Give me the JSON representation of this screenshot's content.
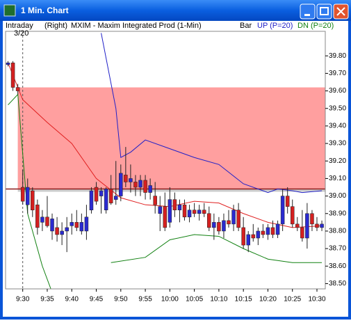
{
  "window": {
    "title": "1 Min. Chart"
  },
  "header": {
    "mode": "Intraday",
    "side": "(Right)",
    "symbol": "MXIM - Maxim Integrated Prod (1-Min)",
    "style": "Bar"
  },
  "chart_data": {
    "type": "candlestick",
    "xlim": [
      566.5,
      631.7
    ],
    "ylim": [
      38.47,
      39.94
    ],
    "xticks": [
      {
        "value": 570,
        "label": "9:30"
      },
      {
        "value": 575,
        "label": "9:35"
      },
      {
        "value": 580,
        "label": "9:40"
      },
      {
        "value": 585,
        "label": "9:45"
      },
      {
        "value": 590,
        "label": "9:50"
      },
      {
        "value": 595,
        "label": "9:55"
      },
      {
        "value": 600,
        "label": "10:00"
      },
      {
        "value": 605,
        "label": "10:05"
      },
      {
        "value": 610,
        "label": "10:10"
      },
      {
        "value": 615,
        "label": "10:15"
      },
      {
        "value": 620,
        "label": "10:20"
      },
      {
        "value": 625,
        "label": "10:25"
      },
      {
        "value": 630,
        "label": "10:30"
      }
    ],
    "yticks": [
      {
        "value": 38.5,
        "label": "38.50"
      },
      {
        "value": 38.6,
        "label": "38.60"
      },
      {
        "value": 38.7,
        "label": "38.70"
      },
      {
        "value": 38.8,
        "label": "38.80"
      },
      {
        "value": 38.9,
        "label": "38.90"
      },
      {
        "value": 39.0,
        "label": "39.00"
      },
      {
        "value": 39.1,
        "label": "39.10"
      },
      {
        "value": 39.2,
        "label": "39.20"
      },
      {
        "value": 39.3,
        "label": "39.30"
      },
      {
        "value": 39.4,
        "label": "39.40"
      },
      {
        "value": 39.5,
        "label": "39.50"
      },
      {
        "value": 39.6,
        "label": "39.60"
      },
      {
        "value": 39.7,
        "label": "39.70"
      },
      {
        "value": 39.8,
        "label": "39.80"
      }
    ],
    "up_color": "#2a2ad0",
    "down_color": "#d42020",
    "x": [
      567,
      568,
      569,
      570,
      571,
      572,
      573,
      574,
      575,
      576,
      577,
      578,
      579,
      580,
      581,
      582,
      583,
      584,
      585,
      586,
      587,
      588,
      589,
      590,
      591,
      592,
      593,
      594,
      595,
      596,
      597,
      598,
      599,
      600,
      601,
      602,
      603,
      604,
      605,
      606,
      607,
      608,
      609,
      610,
      611,
      612,
      613,
      614,
      615,
      616,
      617,
      618,
      619,
      620,
      621,
      622,
      623,
      624,
      625,
      626,
      627,
      628,
      629,
      630,
      631
    ],
    "open": [
      39.75,
      39.76,
      39.62,
      39.05,
      38.95,
      39.03,
      38.95,
      38.85,
      38.88,
      38.8,
      38.82,
      38.78,
      38.8,
      38.83,
      38.85,
      38.8,
      38.8,
      38.92,
      39.05,
      39.0,
      38.92,
      39.04,
      38.98,
      39.0,
      39.12,
      39.08,
      39.08,
      39.05,
      39.09,
      39.02,
      39.0,
      38.9,
      38.94,
      38.85,
      38.98,
      38.92,
      38.95,
      38.88,
      38.92,
      38.9,
      38.92,
      38.9,
      38.82,
      38.85,
      38.8,
      38.86,
      38.84,
      38.92,
      38.82,
      38.72,
      38.78,
      38.76,
      38.8,
      38.78,
      38.82,
      38.78,
      38.84,
      39.0,
      38.94,
      38.84,
      38.82,
      38.76,
      38.9,
      38.84,
      38.82
    ],
    "high": [
      39.77,
      39.77,
      39.64,
      39.15,
      39.1,
      39.05,
      38.98,
      38.92,
      39.0,
      38.9,
      38.88,
      38.85,
      38.88,
      38.9,
      38.92,
      38.9,
      38.95,
      39.05,
      39.08,
      39.05,
      39.05,
      39.12,
      39.2,
      39.18,
      39.28,
      39.18,
      39.12,
      39.12,
      39.12,
      39.1,
      39.08,
      39.0,
      39.02,
      39.05,
      39.02,
      38.98,
      38.98,
      38.95,
      38.96,
      38.95,
      38.96,
      38.94,
      38.9,
      38.88,
      38.9,
      38.92,
      38.95,
      38.96,
      38.88,
      38.8,
      38.84,
      38.82,
      38.84,
      38.84,
      38.86,
      38.86,
      39.04,
      39.05,
      38.98,
      38.88,
      38.92,
      38.96,
      38.92,
      38.88,
      38.86
    ],
    "low": [
      39.74,
      39.6,
      39.58,
      38.95,
      38.9,
      38.88,
      38.78,
      38.8,
      38.82,
      38.75,
      38.74,
      38.72,
      38.68,
      38.78,
      38.8,
      38.78,
      38.75,
      38.9,
      38.95,
      38.9,
      38.9,
      38.95,
      38.95,
      38.97,
      39.05,
      39.02,
      39.0,
      39.0,
      38.98,
      38.98,
      38.9,
      38.8,
      38.8,
      38.82,
      38.88,
      38.85,
      38.86,
      38.85,
      38.88,
      38.86,
      38.88,
      38.8,
      38.75,
      38.78,
      38.76,
      38.82,
      38.8,
      38.8,
      38.7,
      38.68,
      38.74,
      38.72,
      38.76,
      38.75,
      38.76,
      38.76,
      38.8,
      38.9,
      38.82,
      38.8,
      38.74,
      38.7,
      38.8,
      38.8,
      38.8
    ],
    "close": [
      39.76,
      39.62,
      39.6,
      38.97,
      39.05,
      38.92,
      38.82,
      38.88,
      38.83,
      38.87,
      38.78,
      38.8,
      38.82,
      38.85,
      38.82,
      38.85,
      38.88,
      39.03,
      38.97,
      39.03,
      39.04,
      38.96,
      39.0,
      39.13,
      39.08,
      39.1,
      39.05,
      39.09,
      39.02,
      39.06,
      38.95,
      38.94,
      38.82,
      38.98,
      38.92,
      38.95,
      38.88,
      38.92,
      38.9,
      38.92,
      38.9,
      38.82,
      38.85,
      38.8,
      38.86,
      38.84,
      38.92,
      38.82,
      38.72,
      38.78,
      38.76,
      38.8,
      38.78,
      38.82,
      38.78,
      38.84,
      39.0,
      38.94,
      38.84,
      38.82,
      38.76,
      38.9,
      38.84,
      38.82,
      38.84
    ],
    "zone": {
      "low": 39.04,
      "high": 39.62,
      "from": 569,
      "color": "#ff9f9f"
    },
    "hline": {
      "value": 39.04,
      "color": "#8b1a1a"
    },
    "date_marker": {
      "x": 570,
      "label": "3/20"
    },
    "overlays": [
      {
        "color": "#e02020",
        "x": [
          567,
          570,
          575,
          580,
          585,
          590,
          595,
          600,
          605,
          610,
          615,
          620,
          625,
          631
        ],
        "values": [
          39.76,
          39.55,
          39.42,
          39.3,
          39.1,
          38.99,
          38.95,
          38.94,
          38.97,
          38.96,
          38.9,
          38.85,
          38.82,
          38.83
        ]
      }
    ],
    "series": [
      {
        "name": "UP (P=20)",
        "color": "#2020c8",
        "x": [
          586,
          589,
          590,
          592,
          595,
          600,
          605,
          610,
          615,
          620,
          622,
          625,
          627,
          631
        ],
        "values": [
          39.93,
          39.5,
          39.22,
          39.25,
          39.32,
          39.27,
          39.22,
          39.18,
          39.07,
          39.02,
          39.04,
          39.03,
          39.02,
          39.03
        ]
      },
      {
        "name": "DN (P=20)",
        "color": "#108010",
        "x": [
          567,
          569,
          571,
          574,
          576,
          null,
          588,
          595,
          600,
          605,
          610,
          615,
          620,
          625,
          631
        ],
        "values": [
          39.52,
          39.58,
          38.9,
          38.6,
          38.45,
          null,
          38.62,
          38.65,
          38.75,
          38.78,
          38.77,
          38.7,
          38.64,
          38.62,
          38.62
        ]
      }
    ]
  }
}
